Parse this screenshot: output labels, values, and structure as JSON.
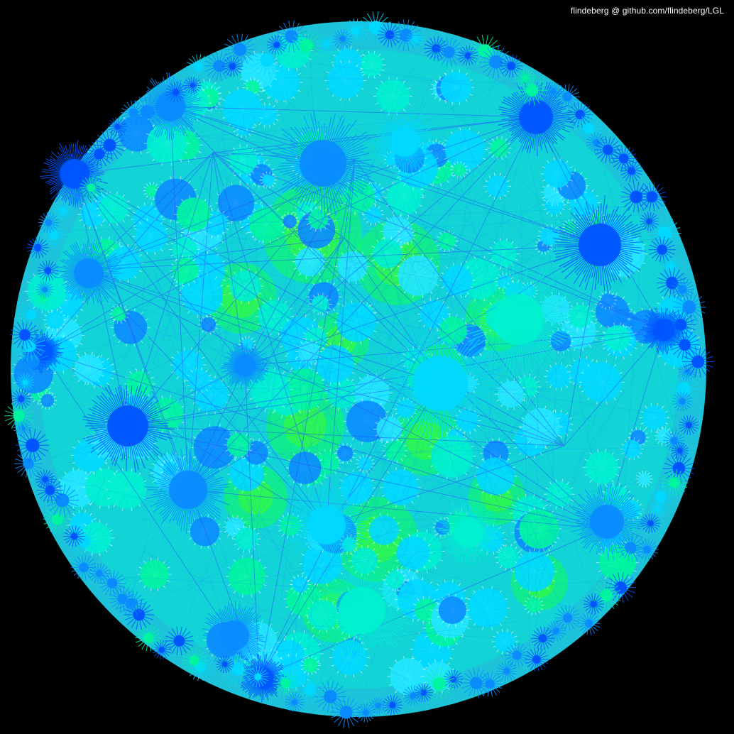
{
  "credit": {
    "text": "flindeberg @ github.com/flindeberg/LGL"
  },
  "palette": {
    "background": "#000000",
    "rim_blue": "#0a4bff",
    "deep_blue": "#0055ff",
    "mid_blue": "#0a8cff",
    "cyan": "#00d8ff",
    "light_cyan": "#22e6ff",
    "aqua": "#00f0d0",
    "sea_green": "#00f5a0",
    "green": "#11ff55",
    "lime": "#44ff22",
    "edge_white": "#ffffff",
    "edge_blue": "#2a4cff"
  },
  "visualization": {
    "type": "network-graph-radial-layout",
    "icon": "network-graph-icon"
  }
}
